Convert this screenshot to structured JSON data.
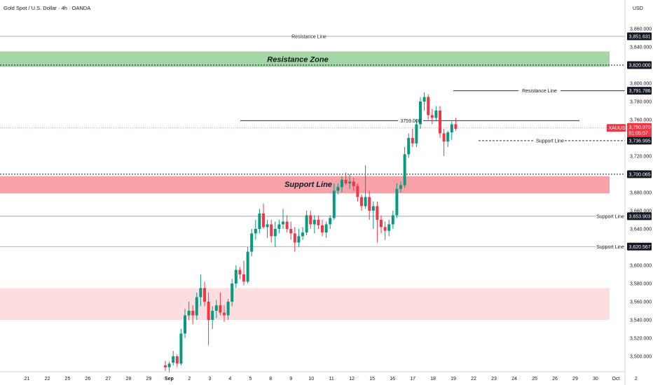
{
  "header": {
    "title": "Gold Spot / U.S. Dollar · 4h · OANDA",
    "currency": "USD"
  },
  "chart_data": {
    "type": "candlestick",
    "title": "Gold Spot / U.S. Dollar · 4h · OANDA",
    "ylabel": "USD",
    "ylim": [
      3486,
      3871
    ],
    "y_ticks": [
      "3,500.000",
      "3,520.000",
      "3,540.000",
      "3,560.000",
      "3,580.000",
      "3,600.000",
      "3,620.000",
      "3,640.000",
      "3,660.000",
      "3,680.000",
      "3,700.000",
      "3,720.000",
      "3,740.000",
      "3,760.000",
      "3,780.000",
      "3,800.000",
      "3,820.000",
      "3,840.000",
      "3,860.000"
    ],
    "x_ticks": [
      {
        "label": "21",
        "i": 3
      },
      {
        "label": "22",
        "i": 9
      },
      {
        "label": "25",
        "i": 15
      },
      {
        "label": "26",
        "i": 21
      },
      {
        "label": "27",
        "i": 27
      },
      {
        "label": "28",
        "i": 33
      },
      {
        "label": "29",
        "i": 39
      },
      {
        "label": "Sep",
        "i": 45,
        "bold": true
      },
      {
        "label": "2",
        "i": 51
      },
      {
        "label": "3",
        "i": 57
      },
      {
        "label": "4",
        "i": 63
      },
      {
        "label": "5",
        "i": 69
      },
      {
        "label": "8",
        "i": 75
      },
      {
        "label": "9",
        "i": 81
      },
      {
        "label": "10",
        "i": 87
      },
      {
        "label": "11",
        "i": 93
      },
      {
        "label": "12",
        "i": 99
      },
      {
        "label": "15",
        "i": 105
      },
      {
        "label": "16",
        "i": 111
      },
      {
        "label": "17",
        "i": 117
      },
      {
        "label": "18",
        "i": 123
      },
      {
        "label": "19",
        "i": 129
      },
      {
        "label": "22",
        "i": 135
      },
      {
        "label": "23",
        "i": 141
      },
      {
        "label": "24",
        "i": 147
      },
      {
        "label": "25",
        "i": 153
      },
      {
        "label": "26",
        "i": 159
      },
      {
        "label": "29",
        "i": 165
      },
      {
        "label": "30",
        "i": 171
      },
      {
        "label": "Oct",
        "i": 177
      },
      {
        "label": "2",
        "i": 183
      }
    ],
    "candles": [
      [
        3490,
        3495,
        3484,
        3488
      ],
      [
        3488,
        3494,
        3482,
        3492
      ],
      [
        3493,
        3506,
        3490,
        3500
      ],
      [
        3500,
        3502,
        3488,
        3492
      ],
      [
        3492,
        3530,
        3490,
        3525
      ],
      [
        3525,
        3552,
        3520,
        3545
      ],
      [
        3545,
        3560,
        3540,
        3550
      ],
      [
        3550,
        3556,
        3535,
        3545
      ],
      [
        3545,
        3570,
        3540,
        3565
      ],
      [
        3565,
        3590,
        3555,
        3575
      ],
      [
        3575,
        3582,
        3555,
        3560
      ],
      [
        3560,
        3570,
        3512,
        3540
      ],
      [
        3540,
        3555,
        3530,
        3550
      ],
      [
        3550,
        3562,
        3542,
        3556
      ],
      [
        3556,
        3570,
        3545,
        3548
      ],
      [
        3548,
        3556,
        3538,
        3545
      ],
      [
        3545,
        3563,
        3540,
        3560
      ],
      [
        3560,
        3585,
        3555,
        3580
      ],
      [
        3580,
        3600,
        3575,
        3595
      ],
      [
        3595,
        3598,
        3585,
        3590
      ],
      [
        3590,
        3605,
        3578,
        3582
      ],
      [
        3582,
        3620,
        3580,
        3615
      ],
      [
        3615,
        3640,
        3610,
        3635
      ],
      [
        3635,
        3650,
        3628,
        3640
      ],
      [
        3640,
        3662,
        3635,
        3657
      ],
      [
        3657,
        3668,
        3640,
        3642
      ],
      [
        3642,
        3650,
        3630,
        3645
      ],
      [
        3645,
        3650,
        3625,
        3632
      ],
      [
        3632,
        3648,
        3620,
        3640
      ],
      [
        3640,
        3650,
        3635,
        3645
      ],
      [
        3645,
        3662,
        3640,
        3648
      ],
      [
        3648,
        3655,
        3636,
        3640
      ],
      [
        3640,
        3648,
        3628,
        3635
      ],
      [
        3635,
        3642,
        3615,
        3625
      ],
      [
        3625,
        3640,
        3620,
        3632
      ],
      [
        3632,
        3642,
        3628,
        3636
      ],
      [
        3636,
        3660,
        3633,
        3655
      ],
      [
        3655,
        3660,
        3640,
        3645
      ],
      [
        3645,
        3655,
        3635,
        3650
      ],
      [
        3650,
        3655,
        3640,
        3644
      ],
      [
        3644,
        3650,
        3632,
        3636
      ],
      [
        3636,
        3648,
        3630,
        3645
      ],
      [
        3645,
        3655,
        3640,
        3652
      ],
      [
        3652,
        3690,
        3650,
        3682
      ],
      [
        3682,
        3690,
        3678,
        3686
      ],
      [
        3686,
        3698,
        3680,
        3694
      ],
      [
        3694,
        3702,
        3688,
        3690
      ],
      [
        3690,
        3700,
        3684,
        3692
      ],
      [
        3692,
        3696,
        3682,
        3687
      ],
      [
        3687,
        3690,
        3670,
        3675
      ],
      [
        3675,
        3678,
        3660,
        3665
      ],
      [
        3665,
        3710,
        3662,
        3675
      ],
      [
        3675,
        3682,
        3650,
        3660
      ],
      [
        3660,
        3670,
        3640,
        3665
      ],
      [
        3665,
        3670,
        3625,
        3650
      ],
      [
        3650,
        3655,
        3635,
        3642
      ],
      [
        3642,
        3648,
        3628,
        3638
      ],
      [
        3638,
        3650,
        3632,
        3645
      ],
      [
        3645,
        3660,
        3640,
        3655
      ],
      [
        3655,
        3690,
        3652,
        3684
      ],
      [
        3684,
        3692,
        3680,
        3688
      ],
      [
        3688,
        3730,
        3685,
        3722
      ],
      [
        3722,
        3745,
        3718,
        3740
      ],
      [
        3740,
        3750,
        3730,
        3734
      ],
      [
        3734,
        3760,
        3730,
        3755
      ],
      [
        3755,
        3785,
        3750,
        3780
      ],
      [
        3780,
        3790,
        3770,
        3785
      ],
      [
        3785,
        3788,
        3760,
        3765
      ],
      [
        3765,
        3772,
        3755,
        3762
      ],
      [
        3762,
        3775,
        3758,
        3770
      ],
      [
        3770,
        3775,
        3740,
        3745
      ],
      [
        3745,
        3750,
        3720,
        3736
      ],
      [
        3736,
        3748,
        3730,
        3746
      ],
      [
        3746,
        3758,
        3738,
        3755
      ],
      [
        3755,
        3762,
        3748,
        3750
      ]
    ],
    "annotations": {
      "resistance_zone": {
        "label": "Resistance Zone",
        "from": 3818,
        "to": 3835
      },
      "support_zone": {
        "label": "Support Line",
        "from": 3679,
        "to": 3698
      },
      "lower_zone": {
        "from": 3540,
        "to": 3575
      },
      "lines": [
        {
          "label": "Resistance Line",
          "price": 3851.631
        },
        {
          "label": "Resistance Line",
          "price": 3791.786
        },
        {
          "label": "3759.000",
          "price": 3759.0
        },
        {
          "label": "Support Line",
          "price": 3736.995
        },
        {
          "label": "Support Line",
          "price": 3653.903
        },
        {
          "label": "Support Line",
          "price": 3620.567
        }
      ],
      "dashed_levels": [
        3820.0,
        3700.065
      ]
    },
    "price_badges": [
      {
        "text": "3,851.631",
        "price": 3851.631,
        "kind": "dark"
      },
      {
        "text": "3,820.000",
        "price": 3820.0,
        "kind": "dark"
      },
      {
        "text": "3,791.786",
        "price": 3791.786,
        "kind": "dark"
      },
      {
        "text": "3,736.995",
        "price": 3736.995,
        "kind": "dark"
      },
      {
        "text": "3,700.065",
        "price": 3700.065,
        "kind": "dark"
      },
      {
        "text": "3,653.903",
        "price": 3653.903,
        "kind": "dark"
      },
      {
        "text": "3,620.567",
        "price": 3620.567,
        "kind": "dark"
      }
    ],
    "current": {
      "symbol": "XAUUSD",
      "price": "3,750.970",
      "countdown": "01:05:07",
      "value": 3750.97
    },
    "colors": {
      "up": "#089981",
      "down": "#f23645",
      "resistance_zone": "#a5d6a7",
      "support_zone": "#f7a1a8",
      "lower_zone": "#fcdde0"
    }
  }
}
